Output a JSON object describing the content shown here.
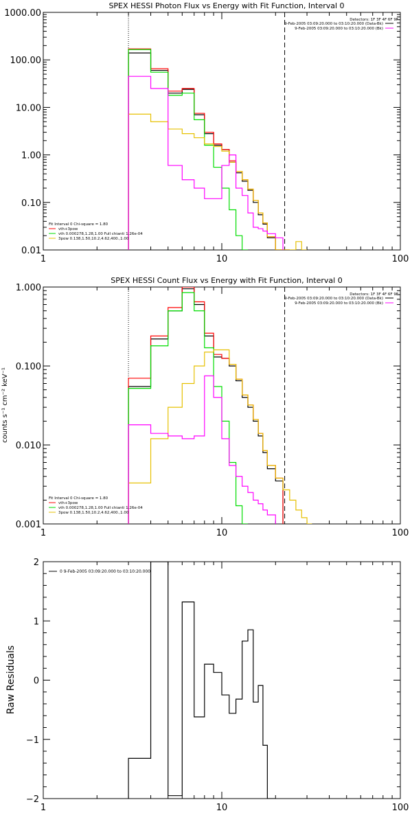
{
  "panels": [
    {
      "title": "SPEX HESSI Photon Flux vs Energy with Fit Function, Interval 0",
      "ylabel": "",
      "ytick_labels": [
        "1000.00",
        "100.00",
        "10.00",
        "1.00",
        "0.10",
        "0.01"
      ],
      "xtick_labels": [
        "1",
        "10",
        "100"
      ],
      "detectors_text": "Detectors: 1F 3F 4F 6F 9F",
      "legend": [
        {
          "text": "9-Feb-2005 03:09:20.000 to 03:10:20.000 (Data-Bk)",
          "color": "#000000"
        },
        {
          "text": "9-Feb-2005 03:09:20.000 to 03:10:20.000 (Bk)",
          "color": "#ff00ff"
        }
      ],
      "fit_legend": [
        {
          "text": "Fit Interval 0   Chi-square = 1.80",
          "color": null
        },
        {
          "text": "vth+3pow",
          "color": "#ff0000"
        },
        {
          "text": "vth 0.000278,1.28,1.00   Full chianti 1.26e-04",
          "color": "#00dd00"
        },
        {
          "text": "3pow 0.138,1.50,10.2,4.62,400.,1.00",
          "color": "#e6c000"
        }
      ]
    },
    {
      "title": "SPEX HESSI Count Flux vs Energy with Fit Function, Interval 0",
      "ylabel": "counts s⁻¹ cm⁻² keV⁻¹",
      "ytick_labels": [
        "1.000",
        "0.100",
        "0.010",
        "0.001"
      ],
      "xtick_labels": [
        "1",
        "10",
        "100"
      ],
      "detectors_text": "Detectors: 1F 3F 4F 6F 9F",
      "legend": [
        {
          "text": "9-Feb-2005 03:09:20.000 to 03:10:20.000 (Data-Bk)",
          "color": "#000000"
        },
        {
          "text": "9-Feb-2005 03:09:20.000 to 03:10:20.000 (Bk)",
          "color": "#ff00ff"
        }
      ],
      "fit_legend": [
        {
          "text": "Fit Interval 0   Chi-square = 1.80",
          "color": null
        },
        {
          "text": "vth+3pow",
          "color": "#ff0000"
        },
        {
          "text": "vth 0.000278,1.28,1.00   Full chianti 1.26e-04",
          "color": "#00dd00"
        },
        {
          "text": "3pow 0.138,1.50,10.2,4.62,400.,1.00",
          "color": "#e6c000"
        }
      ]
    },
    {
      "title": "",
      "ylabel": "Raw Residuals",
      "ytick_labels": [
        "2",
        "1",
        "0",
        "−1",
        "−2"
      ],
      "xtick_labels": [
        "1",
        "10",
        "100"
      ],
      "legend": [
        {
          "text": "0  9-Feb-2005 03:09:20.000 to 03:10:20.000",
          "color": "#000000"
        }
      ]
    }
  ],
  "chart_data": [
    {
      "type": "line",
      "title": "SPEX HESSI Photon Flux vs Energy with Fit Function, Interval 0",
      "xscale": "log",
      "yscale": "log",
      "xlim": [
        1,
        100
      ],
      "ylim": [
        0.01,
        1000
      ],
      "vlines": [
        {
          "x": 3,
          "style": "dotted"
        },
        {
          "x": 22.5,
          "style": "dashed"
        }
      ],
      "bin_edges": [
        3,
        4,
        5,
        6,
        7,
        8,
        9,
        10,
        11,
        12,
        13,
        14,
        15,
        16,
        17,
        18,
        20,
        22,
        24,
        26,
        28,
        30
      ],
      "series": [
        {
          "name": "Data-Bk",
          "color": "#000000",
          "values": [
            140,
            60,
            20,
            24,
            7,
            2.8,
            1.6,
            1.3,
            0.7,
            0.42,
            0.28,
            0.18,
            0.1,
            0.055,
            0.035,
            0.018,
            0.009,
            0.004,
            null,
            null,
            null
          ]
        },
        {
          "name": "vth+3pow",
          "color": "#ff0000",
          "values": [
            170,
            65,
            22,
            25,
            7.5,
            3.0,
            1.7,
            1.3,
            0.75,
            0.45,
            0.3,
            0.19,
            0.11,
            0.06,
            0.037,
            0.019,
            0.009,
            0.0045,
            null,
            null,
            null
          ]
        },
        {
          "name": "vth",
          "color": "#00dd00",
          "values": [
            165,
            55,
            18,
            20,
            5.5,
            1.6,
            0.55,
            0.2,
            0.07,
            0.02,
            0.006,
            null,
            null,
            null,
            null,
            null,
            null,
            null,
            null,
            null,
            null
          ]
        },
        {
          "name": "3pow",
          "color": "#e6c000",
          "values": [
            7.2,
            5.0,
            3.5,
            2.8,
            2.3,
            1.7,
            1.5,
            1.2,
            0.7,
            0.45,
            0.3,
            0.19,
            0.11,
            0.06,
            0.037,
            0.019,
            0.009,
            0.0045,
            0.0025,
            0.015,
            0.01
          ]
        },
        {
          "name": "Bk",
          "color": "#ff00ff",
          "values": [
            45,
            25,
            0.6,
            0.3,
            0.2,
            0.12,
            0.12,
            0.6,
            1.0,
            0.2,
            0.14,
            0.06,
            0.03,
            0.028,
            0.025,
            0.022,
            0.018,
            null,
            null,
            null,
            null
          ]
        }
      ]
    },
    {
      "type": "line",
      "title": "SPEX HESSI Count Flux vs Energy with Fit Function, Interval 0",
      "xscale": "log",
      "yscale": "log",
      "xlim": [
        1,
        100
      ],
      "ylim": [
        0.001,
        1.0
      ],
      "vlines": [
        {
          "x": 3,
          "style": "dotted"
        },
        {
          "x": 22.5,
          "style": "dashed"
        }
      ],
      "bin_edges": [
        3,
        4,
        5,
        6,
        7,
        8,
        9,
        10,
        11,
        12,
        13,
        14,
        15,
        16,
        17,
        18,
        20,
        22,
        24,
        26,
        28,
        30,
        32,
        34
      ],
      "series": [
        {
          "name": "Data-Bk",
          "color": "#000000",
          "values": [
            0.055,
            0.22,
            0.5,
            0.95,
            0.6,
            0.24,
            0.13,
            0.125,
            0.1,
            0.065,
            0.04,
            0.03,
            0.02,
            0.013,
            0.008,
            0.005,
            0.0035,
            null,
            null,
            null,
            null,
            null,
            null
          ]
        },
        {
          "name": "vth+3pow",
          "color": "#ff0000",
          "values": [
            0.07,
            0.24,
            0.55,
            1.0,
            0.65,
            0.26,
            0.14,
            0.125,
            0.105,
            0.068,
            0.043,
            0.032,
            0.021,
            0.014,
            0.0085,
            0.0055,
            0.0038,
            null,
            null,
            null,
            null,
            null,
            null
          ]
        },
        {
          "name": "vth",
          "color": "#00dd00",
          "values": [
            0.052,
            0.18,
            0.5,
            0.85,
            0.5,
            0.17,
            0.055,
            0.02,
            0.006,
            0.0017,
            0.001,
            null,
            null,
            null,
            null,
            null,
            null,
            null,
            null,
            null,
            null,
            null,
            null
          ]
        },
        {
          "name": "3pow",
          "color": "#e6c000",
          "values": [
            0.0033,
            0.012,
            0.03,
            0.06,
            0.1,
            0.15,
            0.16,
            0.16,
            0.105,
            0.068,
            0.043,
            0.032,
            0.021,
            0.014,
            0.0085,
            0.0055,
            0.0038,
            0.0027,
            0.002,
            0.0015,
            0.0012,
            0.001,
            null
          ]
        },
        {
          "name": "Bk",
          "color": "#ff00ff",
          "values": [
            0.018,
            0.014,
            0.013,
            0.012,
            0.013,
            0.075,
            0.04,
            0.012,
            0.0055,
            0.004,
            0.003,
            0.0025,
            0.002,
            0.0018,
            0.0015,
            0.0013,
            null,
            null,
            null,
            null,
            null,
            null,
            null
          ]
        }
      ]
    },
    {
      "type": "line",
      "title": "",
      "ylabel": "Raw Residuals",
      "xscale": "log",
      "yscale": "linear",
      "xlim": [
        1,
        100
      ],
      "ylim": [
        -2,
        2
      ],
      "bin_edges": [
        3,
        4,
        5,
        6,
        7,
        8,
        9,
        10,
        11,
        12,
        13,
        14,
        15,
        16,
        17,
        18,
        20,
        22,
        24
      ],
      "series": [
        {
          "name": "0",
          "color": "#000000",
          "values": [
            -1.32,
            2.0,
            -1.95,
            1.32,
            -0.62,
            0.27,
            0.13,
            -0.25,
            -0.56,
            -0.32,
            0.66,
            0.85,
            -0.37,
            -0.09,
            -1.1,
            -2.0,
            null,
            null
          ]
        }
      ]
    }
  ]
}
